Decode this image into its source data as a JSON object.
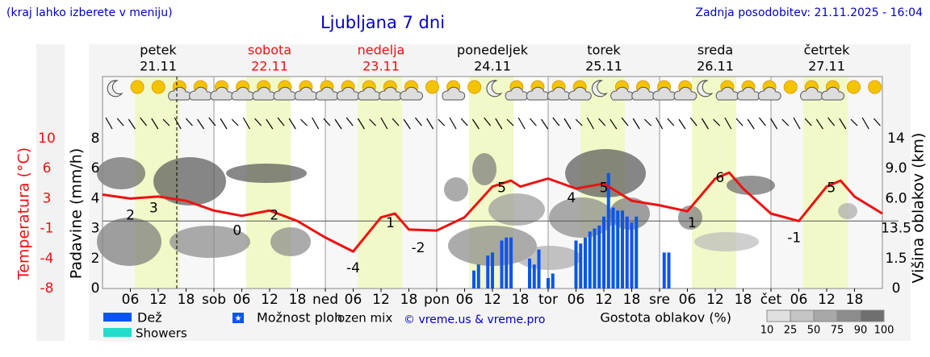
{
  "chart_data": {
    "type": "line",
    "title": "Ljubljana 7 dni",
    "subtitle": "(kraj lahko izberete v meniju)",
    "updated": "Zadnja posodobitev: 21.11.2025 - 16:04",
    "days": [
      {
        "name": "petek",
        "date": "21.11",
        "weekend": false
      },
      {
        "name": "sobota",
        "date": "22.11",
        "weekend": true
      },
      {
        "name": "nedelja",
        "date": "23.11",
        "weekend": true
      },
      {
        "name": "ponedeljek",
        "date": "24.11",
        "weekend": false
      },
      {
        "name": "torek",
        "date": "25.11",
        "weekend": false
      },
      {
        "name": "sreda",
        "date": "26.11",
        "weekend": false
      },
      {
        "name": "četrtek",
        "date": "27.11",
        "weekend": false
      }
    ],
    "xlim": [
      0,
      168
    ],
    "xticks": [
      {
        "value": 6,
        "label": "06"
      },
      12,
      18,
      {
        "value": 24,
        "label": "sob"
      },
      {
        "value": 30,
        "label": "06"
      },
      {
        "value": 36,
        "label": "12"
      },
      {
        "value": 42,
        "label": "18"
      },
      {
        "value": 48,
        "label": "ned"
      },
      {
        "value": 54,
        "label": "06"
      },
      {
        "value": 60,
        "label": "12"
      },
      {
        "value": 66,
        "label": "18"
      },
      {
        "value": 72,
        "label": "pon"
      },
      {
        "value": 78,
        "label": "06"
      },
      {
        "value": 84,
        "label": "12"
      },
      {
        "value": 90,
        "label": "18"
      },
      {
        "value": 96,
        "label": "tor"
      },
      {
        "value": 102,
        "label": "06"
      },
      {
        "value": 108,
        "label": "12"
      },
      {
        "value": 114,
        "label": "18"
      },
      {
        "value": 120,
        "label": "sre"
      },
      {
        "value": 126,
        "label": "06"
      },
      {
        "value": 132,
        "label": "12"
      },
      {
        "value": 138,
        "label": "18"
      },
      {
        "value": 144,
        "label": "čet"
      },
      {
        "value": 150,
        "label": "06"
      },
      {
        "value": 156,
        "label": "12"
      },
      {
        "value": 162,
        "label": "18"
      }
    ],
    "ylabel": "Padavine (mm/h)",
    "ylim": [
      0,
      8
    ],
    "yticks": [
      0,
      2,
      3,
      4,
      6,
      8
    ],
    "temp_label": "Temperatura (°C)",
    "temp_lim": [
      -8,
      10
    ],
    "temp_ticks": [
      -8,
      -4,
      -1,
      3,
      6,
      10
    ],
    "y2label": "Višina oblakov (km)",
    "y2ticks": [
      0,
      1.5,
      13.5,
      {
        "value": 6,
        "label": "6.0"
      },
      {
        "value": 9,
        "label": "9.0"
      },
      14
    ],
    "temperature": {
      "color": "#ee1111",
      "x": [
        0,
        6,
        12,
        18,
        24,
        30,
        36,
        42,
        48,
        54,
        60,
        63,
        66,
        72,
        78,
        84,
        88,
        90,
        96,
        102,
        108,
        114,
        120,
        126,
        132,
        135,
        138,
        144,
        150,
        156,
        159,
        162,
        168
      ],
      "values": [
        3.4,
        3,
        3.2,
        2.7,
        1.4,
        0.7,
        1.4,
        0,
        -1.9,
        -3.3,
        0.5,
        1,
        -1.1,
        -1.2,
        0.5,
        4.2,
        4.8,
        4.2,
        5,
        4,
        4.5,
        2.7,
        2.1,
        1.3,
        5,
        5.6,
        4,
        1,
        0,
        4.2,
        4.8,
        3.2,
        1
      ]
    },
    "temp_annotations": [
      {
        "x": 6,
        "value": 2
      },
      {
        "x": 11,
        "value": 3
      },
      {
        "x": 29,
        "value": 0
      },
      {
        "x": 37,
        "value": 2
      },
      {
        "x": 54,
        "value": -4
      },
      {
        "x": 62,
        "value": 1
      },
      {
        "x": 68,
        "value": -2
      },
      {
        "x": 86,
        "value": 5
      },
      {
        "x": 101,
        "value": 4
      },
      {
        "x": 108,
        "value": 5
      },
      {
        "x": 127,
        "value": 1
      },
      {
        "x": 133,
        "value": 6
      },
      {
        "x": 149,
        "value": -1
      },
      {
        "x": 157,
        "value": 5
      }
    ],
    "precipitation": {
      "name": "Dež",
      "color": "#0a55ee",
      "x": [
        80,
        81,
        83,
        84,
        86,
        87,
        88,
        92,
        93,
        94,
        96,
        97,
        102,
        103,
        104,
        105,
        106,
        107,
        108,
        109,
        110,
        111,
        112,
        113,
        114,
        115,
        121,
        122
      ],
      "values": [
        1.2,
        1.6,
        2.1,
        2.2,
        2.6,
        2.7,
        2.7,
        2,
        1.6,
        2.3,
        0.7,
        1,
        2.6,
        2.5,
        2.7,
        2.9,
        3,
        3.1,
        3.4,
        5.7,
        3.7,
        3.6,
        3.6,
        3.4,
        3.2,
        3.4,
        2.2,
        2.2
      ]
    },
    "legend": [
      {
        "name": "Dež",
        "color": "#0a55ee"
      },
      {
        "name": "Showers",
        "color": "#22ddcc"
      },
      {
        "name": "Možnost ploh",
        "color": "#0a55ee"
      },
      {
        "name": "ozen mix"
      }
    ],
    "credit": "© vreme.us & vreme.pro",
    "density_label": "Gostota oblakov (%)",
    "density_ticks": [
      10,
      25,
      50,
      75,
      90,
      100
    ]
  }
}
